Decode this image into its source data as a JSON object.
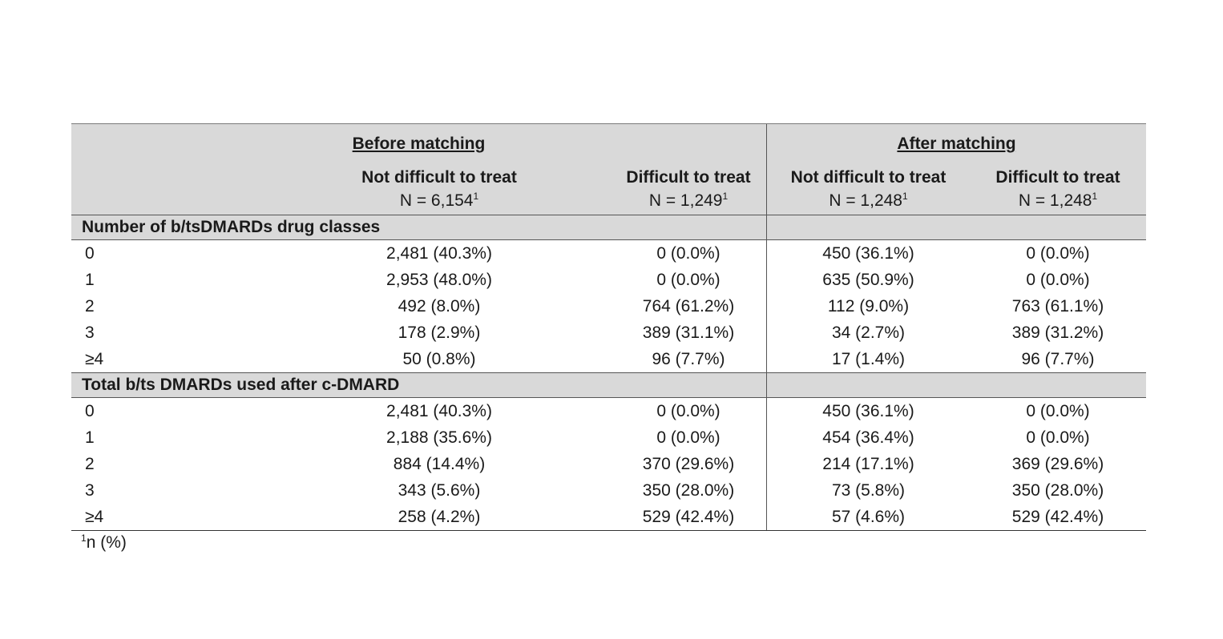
{
  "header": {
    "before_title": "Before matching",
    "after_title": "After matching",
    "columns": [
      {
        "label": "Not difficult to treat",
        "n": "N = 6,154",
        "sup": "1"
      },
      {
        "label": "Difficult to treat",
        "n": "N = 1,249",
        "sup": "1"
      },
      {
        "label": "Not difficult to treat",
        "n": "N = 1,248",
        "sup": "1"
      },
      {
        "label": "Difficult to treat",
        "n": "N = 1,248",
        "sup": "1"
      }
    ]
  },
  "sections": [
    {
      "title": "Number of b/tsDMARDs drug classes",
      "rows": [
        [
          "0",
          "2,481 (40.3%)",
          "0 (0.0%)",
          "450 (36.1%)",
          "0 (0.0%)"
        ],
        [
          "1",
          "2,953 (48.0%)",
          "0 (0.0%)",
          "635 (50.9%)",
          "0 (0.0%)"
        ],
        [
          "2",
          "492 (8.0%)",
          "764 (61.2%)",
          "112 (9.0%)",
          "763 (61.1%)"
        ],
        [
          "3",
          "178 (2.9%)",
          "389 (31.1%)",
          "34 (2.7%)",
          "389 (31.2%)"
        ],
        [
          "≥4",
          "50 (0.8%)",
          "96 (7.7%)",
          "17 (1.4%)",
          "96 (7.7%)"
        ]
      ]
    },
    {
      "title": "Total b/ts DMARDs used after c-DMARD",
      "rows": [
        [
          "0",
          "2,481 (40.3%)",
          "0 (0.0%)",
          "450 (36.1%)",
          "0 (0.0%)"
        ],
        [
          "1",
          "2,188 (35.6%)",
          "0 (0.0%)",
          "454 (36.4%)",
          "0 (0.0%)"
        ],
        [
          "2",
          "884 (14.4%)",
          "370 (29.6%)",
          "214 (17.1%)",
          "369 (29.6%)"
        ],
        [
          "3",
          "343 (5.6%)",
          "350 (28.0%)",
          "73 (5.8%)",
          "350 (28.0%)"
        ],
        [
          "≥4",
          "258 (4.2%)",
          "529 (42.4%)",
          "57 (4.6%)",
          "529 (42.4%)"
        ]
      ]
    }
  ],
  "footnote": {
    "sup": "1",
    "text": "n (%)"
  }
}
